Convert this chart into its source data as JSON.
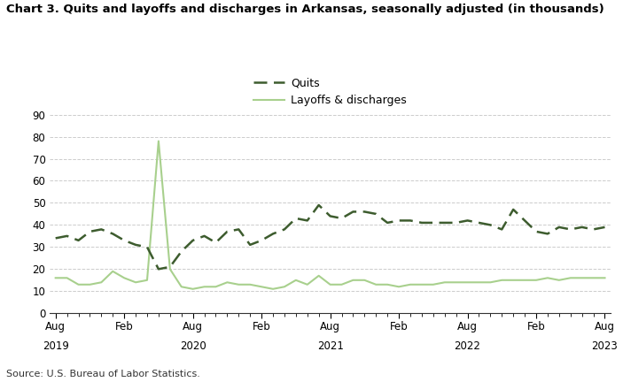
{
  "title": "Chart 3. Quits and layoffs and discharges in Arkansas, seasonally adjusted (in thousands)",
  "source": "Source: U.S. Bureau of Labor Statistics.",
  "quits_label": "Quits",
  "layoffs_label": "Layoffs & discharges",
  "quits_color": "#3d5c2e",
  "layoffs_color": "#a8d08d",
  "ylim": [
    0,
    90
  ],
  "yticks": [
    0,
    10,
    20,
    30,
    40,
    50,
    60,
    70,
    80,
    90
  ],
  "quits": [
    34,
    35,
    33,
    37,
    38,
    36,
    33,
    31,
    30,
    20,
    21,
    28,
    33,
    35,
    32,
    37,
    38,
    31,
    33,
    36,
    38,
    43,
    42,
    49,
    44,
    43,
    46,
    46,
    45,
    41,
    42,
    42,
    41,
    41,
    41,
    41,
    42,
    41,
    40,
    38,
    47,
    42,
    37,
    36,
    39,
    38,
    39,
    38,
    39
  ],
  "layoffs": [
    16,
    16,
    13,
    13,
    14,
    19,
    16,
    14,
    15,
    78,
    20,
    12,
    11,
    12,
    12,
    14,
    13,
    13,
    12,
    11,
    12,
    15,
    13,
    17,
    13,
    13,
    15,
    15,
    13,
    13,
    12,
    13,
    13,
    13,
    14,
    14,
    14,
    14,
    14,
    15,
    15,
    15,
    15,
    16,
    15,
    16,
    16,
    16,
    16
  ],
  "num_months": 49,
  "xtick_major_positions": [
    0,
    6,
    12,
    18,
    24,
    30,
    36,
    42,
    48
  ],
  "xtick_major_labels": [
    "Aug",
    "Feb",
    "Aug",
    "Feb",
    "Aug",
    "Feb",
    "Aug",
    "Feb",
    "Aug"
  ],
  "xtick_year_positions": [
    0,
    12,
    24,
    36,
    48
  ],
  "xtick_year_labels": [
    "2019",
    "2020",
    "2021",
    "2022",
    "2023"
  ]
}
